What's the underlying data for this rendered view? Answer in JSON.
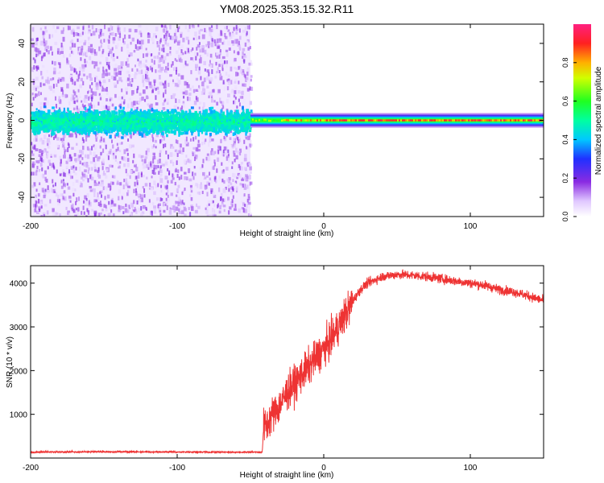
{
  "title": "YM08.2025.353.15.32.R11",
  "chart_data": [
    {
      "type": "heatmap",
      "name": "spectrogram",
      "xlabel": "Height of straight line (km)",
      "ylabel": "Frequency (Hz)",
      "xlim": [
        -200,
        150
      ],
      "ylim": [
        -50,
        50
      ],
      "xticks": [
        "-200",
        "-100",
        "0",
        "100"
      ],
      "xtick_values": [
        -200,
        -100,
        0,
        100
      ],
      "yticks": [
        "-40",
        "-20",
        "0",
        "20",
        "40"
      ],
      "ytick_values": [
        -40,
        -20,
        0,
        20,
        40
      ],
      "noise_region_x": [
        -200,
        -50
      ],
      "signal_region_x": [
        -50,
        150
      ],
      "signal_frequency_hz": 0,
      "colorbar": {
        "label": "Normalized spectral amplitude",
        "range": [
          0,
          1
        ],
        "ticks": [
          "0.0",
          "0.2",
          "0.4",
          "0.6",
          "0.8"
        ],
        "tick_values": [
          0.0,
          0.2,
          0.4,
          0.6,
          0.8
        ]
      }
    },
    {
      "type": "line",
      "name": "snr",
      "xlabel": "Height of straight line (km)",
      "ylabel": "SNR (10 * v/v)",
      "xlim": [
        -200,
        150
      ],
      "ylim": [
        0,
        4400
      ],
      "xticks": [
        "-200",
        "-100",
        "0",
        "100"
      ],
      "xtick_values": [
        -200,
        -100,
        0,
        100
      ],
      "yticks": [
        "1000",
        "2000",
        "3000",
        "4000"
      ],
      "ytick_values": [
        1000,
        2000,
        3000,
        4000
      ],
      "color": "#ee3333",
      "series": [
        {
          "name": "SNR",
          "x": [
            -200,
            -150,
            -100,
            -60,
            -42,
            -41,
            -38,
            -35,
            -30,
            -25,
            -20,
            -15,
            -10,
            -5,
            0,
            5,
            10,
            15,
            20,
            25,
            30,
            40,
            50,
            60,
            70,
            80,
            90,
            100,
            110,
            120,
            130,
            140,
            150
          ],
          "values": [
            150,
            160,
            155,
            150,
            150,
            700,
            800,
            1000,
            1200,
            1500,
            1700,
            1900,
            2100,
            2300,
            2500,
            2700,
            3000,
            3300,
            3600,
            3850,
            4000,
            4150,
            4200,
            4180,
            4150,
            4100,
            4050,
            4000,
            3950,
            3850,
            3800,
            3700,
            3600
          ]
        }
      ]
    }
  ]
}
